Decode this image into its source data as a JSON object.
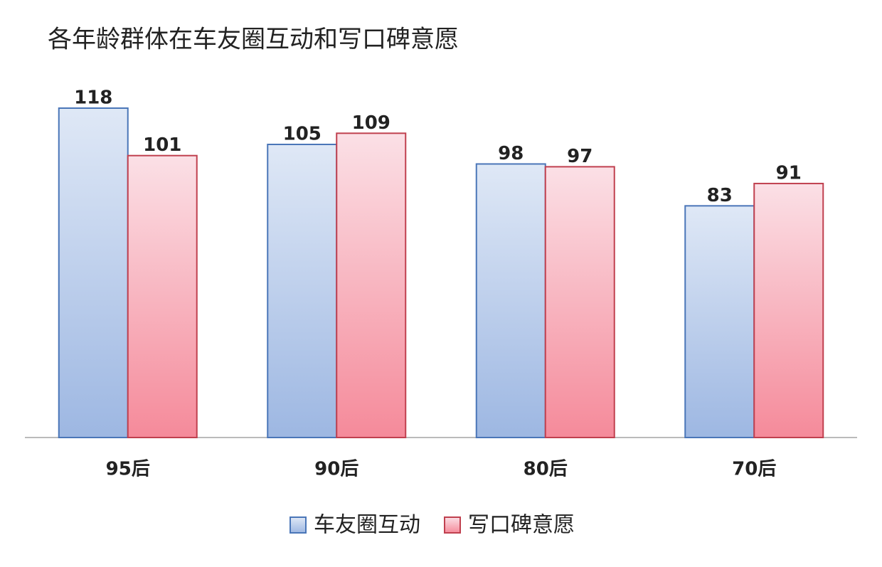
{
  "chart_data": {
    "type": "bar",
    "title": "各年龄群体在车友圈互动和写口碑意愿",
    "categories": [
      "95后",
      "90后",
      "80后",
      "70后"
    ],
    "series": [
      {
        "name": "车友圈互动",
        "color": "#4a76b8",
        "values": [
          118,
          105,
          98,
          83
        ]
      },
      {
        "name": "写口碑意愿",
        "color": "#c0404f",
        "values": [
          101,
          109,
          97,
          91
        ]
      }
    ]
  }
}
